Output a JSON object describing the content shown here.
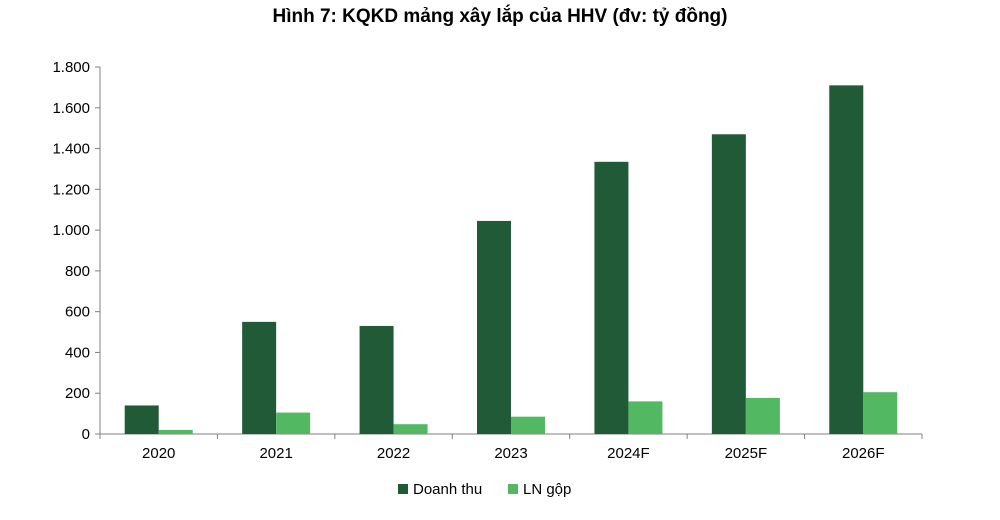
{
  "chart_data": {
    "type": "bar",
    "title": "Hình 7: KQKD mảng xây lắp của HHV (đv: tỷ đồng)",
    "xlabel": "",
    "ylabel": "",
    "categories": [
      "2020",
      "2021",
      "2022",
      "2023",
      "2024F",
      "2025F",
      "2026F"
    ],
    "series": [
      {
        "name": "Doanh thu",
        "color": "#215a36",
        "values": [
          140,
          550,
          530,
          1045,
          1335,
          1470,
          1710
        ]
      },
      {
        "name": "LN gộp",
        "color": "#52b862",
        "values": [
          20,
          105,
          48,
          85,
          160,
          177,
          205
        ]
      }
    ],
    "ylim": [
      0,
      1800
    ],
    "yticks": [
      0,
      200,
      400,
      600,
      800,
      1000,
      1200,
      1400,
      1600,
      1800
    ],
    "ytick_labels": [
      "0",
      "200",
      "400",
      "600",
      "800",
      "1.000",
      "1.200",
      "1.400",
      "1.600",
      "1.800"
    ],
    "grid": false,
    "legend_position": "bottom-center"
  }
}
